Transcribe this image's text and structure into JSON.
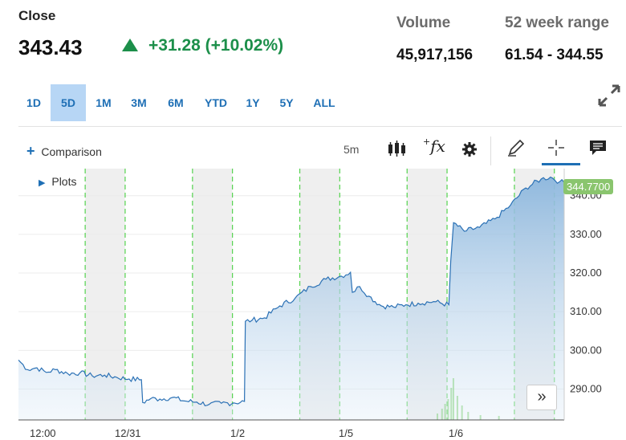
{
  "quote": {
    "close_label": "Close",
    "close_value": "343.43",
    "change_text": "+31.28 (+10.02%)",
    "volume_label": "Volume",
    "volume_value": "45,917,156",
    "range_label": "52 week range",
    "range_value": "61.54 - 344.55",
    "up_color": "#1c8f4a"
  },
  "ranges": [
    "1D",
    "5D",
    "1M",
    "3M",
    "6M",
    "YTD",
    "1Y",
    "5Y",
    "ALL"
  ],
  "active_range": "5D",
  "toolbar": {
    "comparison_label": "Comparison",
    "interval_label": "5m",
    "plots_label": "Plots",
    "fx_label": "fx"
  },
  "chart_data": {
    "type": "area",
    "y_ticks": [
      "290.00",
      "300.00",
      "310.00",
      "320.00",
      "330.00",
      "340.00"
    ],
    "ylim": [
      282,
      347
    ],
    "x_labels": [
      "12:00",
      "12/31",
      "1/2",
      "1/5",
      "1/6"
    ],
    "last_price": "344.7700",
    "grid": true,
    "series": [
      {
        "values": [
          [
            0,
            297.5
          ],
          [
            0.3,
            295
          ],
          [
            0.6,
            295.5
          ],
          [
            0.9,
            294.3
          ],
          [
            1.2,
            295
          ],
          [
            1.6,
            294
          ],
          [
            2.0,
            294.2
          ],
          [
            2.4,
            293.4
          ],
          [
            2.8,
            293.6
          ],
          [
            3.2,
            293
          ],
          [
            3.6,
            292.6
          ],
          [
            4.0,
            292.4
          ],
          [
            4.04,
            286.5
          ],
          [
            4.3,
            287.5
          ],
          [
            4.6,
            287.4
          ],
          [
            5.0,
            287.8
          ],
          [
            5.4,
            286.9
          ],
          [
            5.8,
            286.6
          ],
          [
            6.2,
            286.0
          ],
          [
            6.6,
            286.3
          ],
          [
            7.0,
            286.4
          ],
          [
            7.35,
            286.8
          ],
          [
            7.38,
            307.5
          ],
          [
            7.6,
            307.8
          ],
          [
            8.0,
            308.4
          ],
          [
            8.5,
            311.5
          ],
          [
            9.0,
            313.5
          ],
          [
            9.5,
            316.5
          ],
          [
            10.0,
            318.4
          ],
          [
            10.5,
            319.2
          ],
          [
            10.8,
            320.2
          ],
          [
            10.86,
            315.0
          ],
          [
            11.1,
            316.5
          ],
          [
            11.4,
            314.0
          ],
          [
            11.8,
            311.5
          ],
          [
            12.2,
            311.2
          ],
          [
            12.6,
            311.8
          ],
          [
            13.0,
            312.2
          ],
          [
            13.5,
            312.6
          ],
          [
            14.0,
            311.8
          ],
          [
            14.06,
            323.0
          ],
          [
            14.15,
            333.0
          ],
          [
            14.5,
            330.8
          ],
          [
            15.0,
            331.8
          ],
          [
            15.5,
            334.0
          ],
          [
            16.0,
            337.5
          ],
          [
            16.5,
            342.0
          ],
          [
            17.0,
            344.3
          ],
          [
            17.3,
            344.8
          ],
          [
            17.6,
            343.6
          ],
          [
            17.75,
            343.4
          ]
        ]
      }
    ]
  }
}
